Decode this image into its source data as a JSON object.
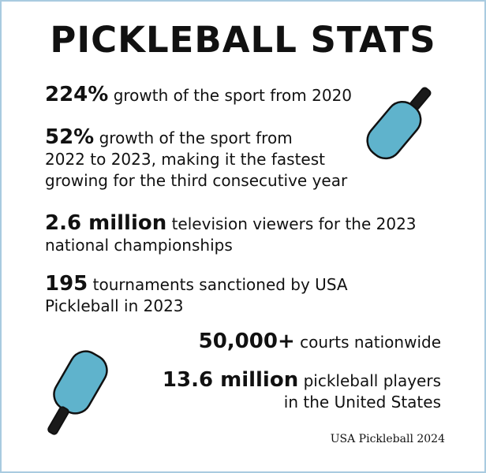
{
  "title": "PICKLEBALL STATS",
  "stats": [
    {
      "value": "224%",
      "text": "growth of the sport from 2020"
    },
    {
      "value": "52%",
      "text": "growth of the sport from\n2022 to 2023, making it the fastest\ngrowing for the third consecutive year"
    },
    {
      "value": "2.6 million",
      "text": "television viewers for the 2023\nnational championships"
    },
    {
      "value": "195",
      "text": "tournaments sanctioned by USA\nPickleball in 2023"
    },
    {
      "value": "50,000+",
      "text": "courts nationwide"
    },
    {
      "value": "13.6 million",
      "text": "pickleball players\nin the United States"
    }
  ],
  "credit": "USA Pickleball 2024",
  "colors": {
    "paddle": "#5fb3cc",
    "handle": "#1a1a1a",
    "border": "#a9cbe0"
  },
  "icons": [
    "pickleball-paddle-icon",
    "pickleball-paddle-icon"
  ]
}
